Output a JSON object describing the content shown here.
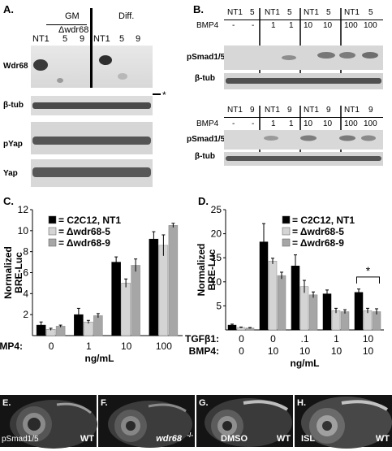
{
  "panels": {
    "a": "A.",
    "b": "B.",
    "c": "C.",
    "d": "D.",
    "e": "E.",
    "f": "F.",
    "g": "G.",
    "h": "H."
  },
  "panelA": {
    "group_gm": "GM",
    "group_diff": "Diff.",
    "delta_gm": "Δwdr68",
    "lane_gm": [
      "NT1",
      "5",
      "9"
    ],
    "lane_diff": [
      "NT1",
      "5",
      "9"
    ],
    "rows": [
      "Wdr68",
      "β-tub",
      "pYap",
      "Yap"
    ],
    "asterisk": "*"
  },
  "panelB": {
    "top_lanes": [
      "NT1",
      "5",
      "NT1",
      "5",
      "NT1",
      "5",
      "NT1",
      "5"
    ],
    "top_bmp": [
      "-",
      "-",
      "1",
      "1",
      "10",
      "10",
      "100",
      "100"
    ],
    "bottom_lanes": [
      "NT1",
      "9",
      "NT1",
      "9",
      "NT1",
      "9",
      "NT1",
      "9"
    ],
    "bottom_bmp": [
      "-",
      "-",
      "1",
      "1",
      "10",
      "10",
      "100",
      "100"
    ],
    "bmp_label": "BMP4",
    "rows": [
      "pSmad1/5",
      "β-tub"
    ]
  },
  "chart_data": [
    {
      "type": "bar",
      "ylabel": "Normalized BRE-Luc",
      "xlabel_prefix": "BMP4:",
      "xlabel": "ng/mL",
      "categories": [
        "0",
        "1",
        "10",
        "100"
      ],
      "ylim": [
        0,
        12
      ],
      "yticks": [
        2,
        4,
        6,
        8,
        10,
        12
      ],
      "series": [
        {
          "name": "= C2C12, NT1",
          "color": "#000000",
          "values": [
            1.0,
            2.0,
            7.0,
            9.2
          ],
          "errors": [
            0.3,
            0.6,
            0.5,
            0.7
          ]
        },
        {
          "name": "= Δwdr68-5",
          "color": "#d4d4d4",
          "values": [
            0.6,
            1.3,
            5.0,
            8.6
          ],
          "errors": [
            0.1,
            0.15,
            0.4,
            1.0
          ]
        },
        {
          "name": "= Δwdr68-9",
          "color": "#a6a6a6",
          "values": [
            0.9,
            1.9,
            6.7,
            10.5
          ],
          "errors": [
            0.1,
            0.2,
            0.6,
            0.2
          ]
        }
      ]
    },
    {
      "type": "bar",
      "ylabel": "Normalized BRE-Luc",
      "row1_label": "TGFβ1:",
      "row2_label": "BMP4:",
      "xlabel": "ng/mL",
      "categories_tgf": [
        "0",
        "0",
        ".1",
        "1",
        "10"
      ],
      "categories_bmp": [
        "0",
        "10",
        "10",
        "10",
        "10"
      ],
      "ylim": [
        0,
        25
      ],
      "yticks": [
        5,
        10,
        15,
        20,
        25
      ],
      "annotation": "*",
      "series": [
        {
          "name": "= C2C12, NT1",
          "color": "#000000",
          "values": [
            1.0,
            18.3,
            13.3,
            7.5,
            7.8
          ],
          "errors": [
            0.2,
            3.8,
            2.3,
            0.8,
            0.7
          ]
        },
        {
          "name": "= Δwdr68-5",
          "color": "#d4d4d4",
          "values": [
            0.5,
            14.3,
            9.0,
            4.0,
            4.0
          ],
          "errors": [
            0.1,
            0.6,
            1.3,
            0.5,
            0.5
          ]
        },
        {
          "name": "= Δwdr68-9",
          "color": "#a6a6a6",
          "values": [
            0.4,
            11.3,
            7.3,
            3.8,
            3.8
          ],
          "errors": [
            0.1,
            0.7,
            0.6,
            0.4,
            0.6
          ]
        }
      ]
    }
  ],
  "embryos": {
    "e_left": "pSmad1/5",
    "e_right": "WT",
    "f_right": "wdr68",
    "f_sup": "-/-",
    "g_left": "DMSO",
    "g_right": "WT",
    "h_left": "ISL",
    "h_right": "WT"
  }
}
